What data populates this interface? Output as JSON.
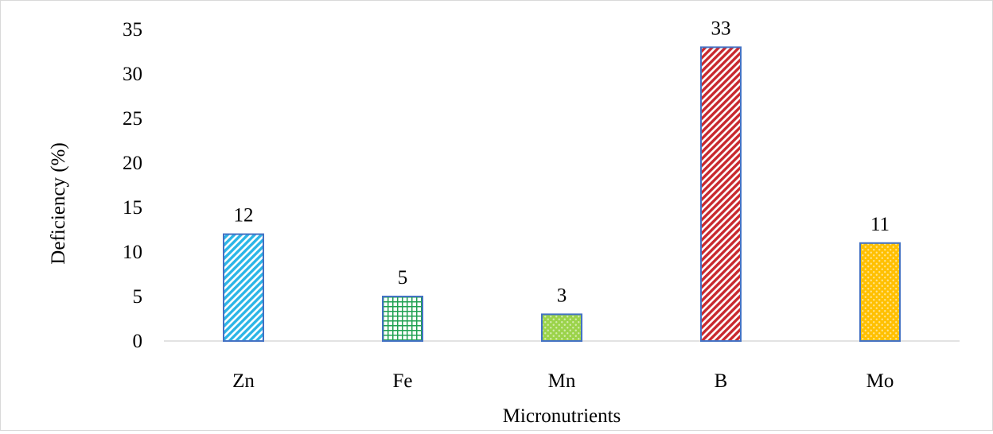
{
  "chart_data": {
    "type": "bar",
    "title": "",
    "xlabel": "Micronutrients",
    "ylabel": "Deficiency  (%)",
    "categories": [
      "Zn",
      "Fe",
      "Mn",
      "B",
      "Mo"
    ],
    "values": [
      12,
      5,
      3,
      33,
      11
    ],
    "data_labels": [
      "12",
      "5",
      "3",
      "33",
      "11"
    ],
    "ylim": [
      0,
      35
    ],
    "yticks": [
      0,
      5,
      10,
      15,
      20,
      25,
      30,
      35
    ],
    "ytick_labels": [
      "0",
      "5",
      "10",
      "15",
      "20",
      "25",
      "30",
      "35"
    ],
    "grid": false,
    "legend": "none",
    "bars": [
      {
        "pattern": "diagonal-stripes",
        "color": "#2bb5e6",
        "border": "#4472c4"
      },
      {
        "pattern": "grid",
        "color": "#21a152",
        "border": "#4472c4"
      },
      {
        "pattern": "dots",
        "color": "#9bd34a",
        "border": "#4472c4"
      },
      {
        "pattern": "diagonal-stripes",
        "color": "#c8282e",
        "border": "#4472c4"
      },
      {
        "pattern": "dots",
        "color": "#ffc000",
        "border": "#4472c4"
      }
    ]
  }
}
